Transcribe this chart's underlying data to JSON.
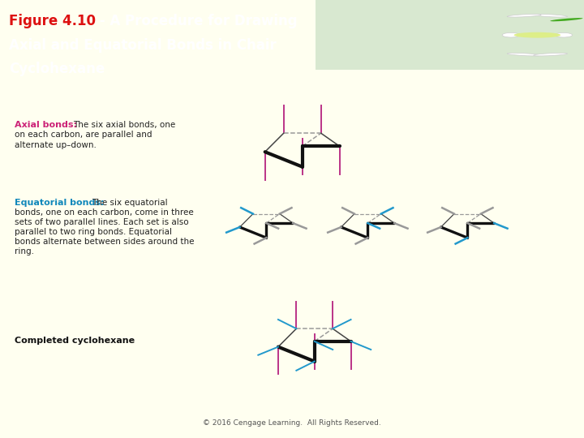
{
  "header_bg": "#2d8a00",
  "fig_num_color": "#dd1111",
  "body_bg": "#fffff0",
  "axial_label": "Axial bonds:",
  "axial_label_color": "#cc2277",
  "axial_desc1": "  The six axial bonds, one",
  "axial_desc2": "on each carbon, are parallel and",
  "axial_desc3": "alternate up–down.",
  "equatorial_label": "Equatorial bonds:",
  "equatorial_label_color": "#1188bb",
  "equatorial_desc1": "  The six equatorial",
  "equatorial_desc2": "bonds, one on each carbon, come in three",
  "equatorial_desc3": "sets of two parallel lines. Each set is also",
  "equatorial_desc4": "parallel to two ring bonds. Equatorial",
  "equatorial_desc5": "bonds alternate between sides around the",
  "equatorial_desc6": "ring.",
  "completed_label": "Completed cyclohexane",
  "footer": "© 2016 Cengage Learning.  All Rights Reserved.",
  "chair_thick_color": "#111111",
  "chair_thin_color": "#444444",
  "axial_color": "#bb3388",
  "equatorial_color": "#2299cc",
  "dashed_color": "#999999"
}
